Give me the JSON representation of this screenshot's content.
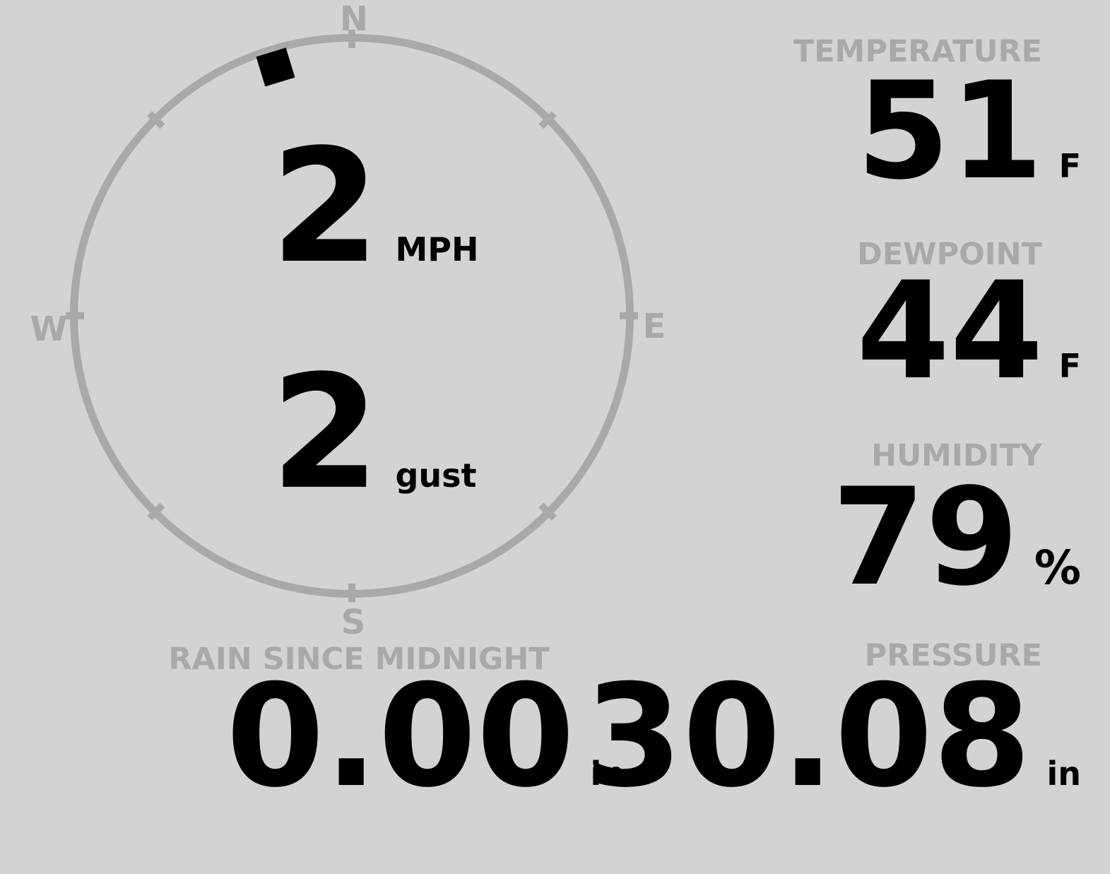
{
  "compass": {
    "cardinals": {
      "north": "N",
      "east": "E",
      "south": "S",
      "west": "W"
    }
  },
  "wind": {
    "direction_deg": 343,
    "speed": "2",
    "speed_unit": "MPH",
    "gust": "2",
    "gust_unit": "gust"
  },
  "metrics": {
    "temperature": {
      "label": "TEMPERATURE",
      "value": "51",
      "unit": "F"
    },
    "dewpoint": {
      "label": "DEWPOINT",
      "value": "44",
      "unit": "F"
    },
    "humidity": {
      "label": "HUMIDITY",
      "value": "79",
      "unit": "%"
    },
    "rain": {
      "label": "RAIN SINCE MIDNIGHT",
      "value": "0.00",
      "unit": "in"
    },
    "pressure": {
      "label": "PRESSURE",
      "value": "30.08",
      "unit": "in"
    }
  },
  "colors": {
    "background": "#d3d3d3",
    "muted": "#a9a9a9",
    "ink": "#000000"
  }
}
